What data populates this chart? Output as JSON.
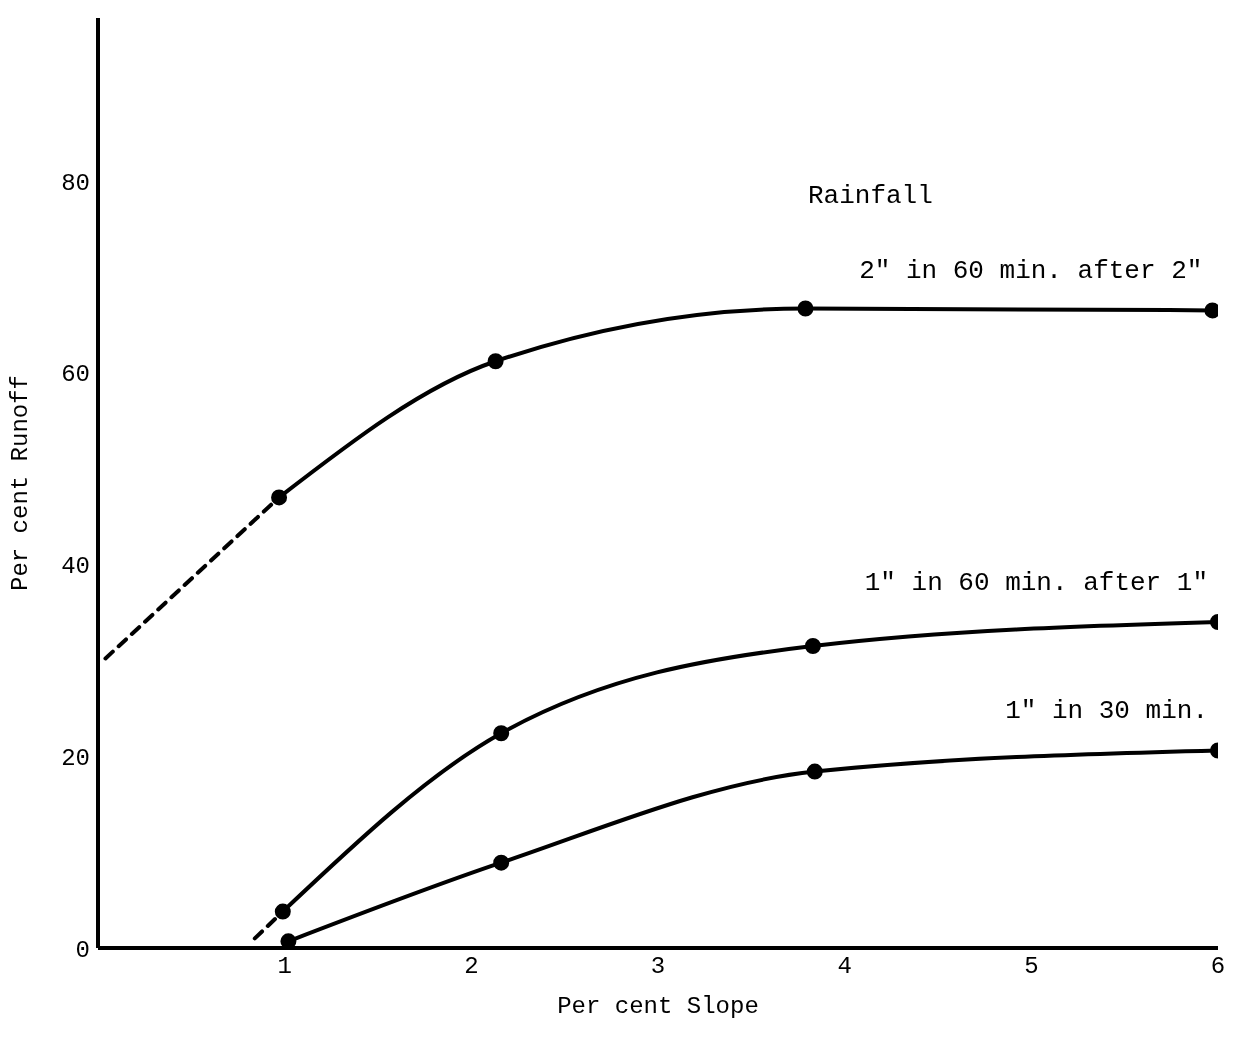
{
  "chart_data": {
    "type": "line",
    "xlabel": "Per cent Slope",
    "ylabel": "Per cent Runoff",
    "annotations": [
      "Rainfall"
    ],
    "xlim": [
      0,
      6
    ],
    "xticks": [
      1,
      2,
      3,
      4,
      5,
      6
    ],
    "ylim": [
      0,
      97
    ],
    "yticks": [
      0,
      20,
      40,
      60,
      80
    ],
    "grid": false,
    "legend": false,
    "marker": "circle",
    "line_style": "solid",
    "series": [
      {
        "name": "2\" in 60 min. after 2\"",
        "color": "#000000",
        "x": [
          0.97,
          2.13,
          3.79,
          5.97
        ],
        "values": [
          47,
          61.2,
          66.7,
          66.5
        ]
      },
      {
        "name": "1\" in 60 min. after 1\"",
        "color": "#000000",
        "x": [
          0.99,
          2.16,
          3.83,
          6.0
        ],
        "values": [
          3.8,
          22.4,
          31.5,
          34
        ]
      },
      {
        "name": "1\" in 30 min.",
        "color": "#000000",
        "x": [
          1.02,
          2.16,
          3.84,
          6.0
        ],
        "values": [
          0.7,
          8.9,
          18.4,
          20.6
        ]
      },
      {
        "color": "#000000",
        "x": [
          0.04,
          0.97
        ],
        "values": [
          30.2,
          47
        ],
        "marker": "none",
        "line_style": "dashed"
      },
      {
        "color": "#000000",
        "x": [
          0.84,
          0.99
        ],
        "values": [
          1,
          3.8
        ],
        "marker": "none",
        "line_style": "dashed"
      }
    ]
  }
}
